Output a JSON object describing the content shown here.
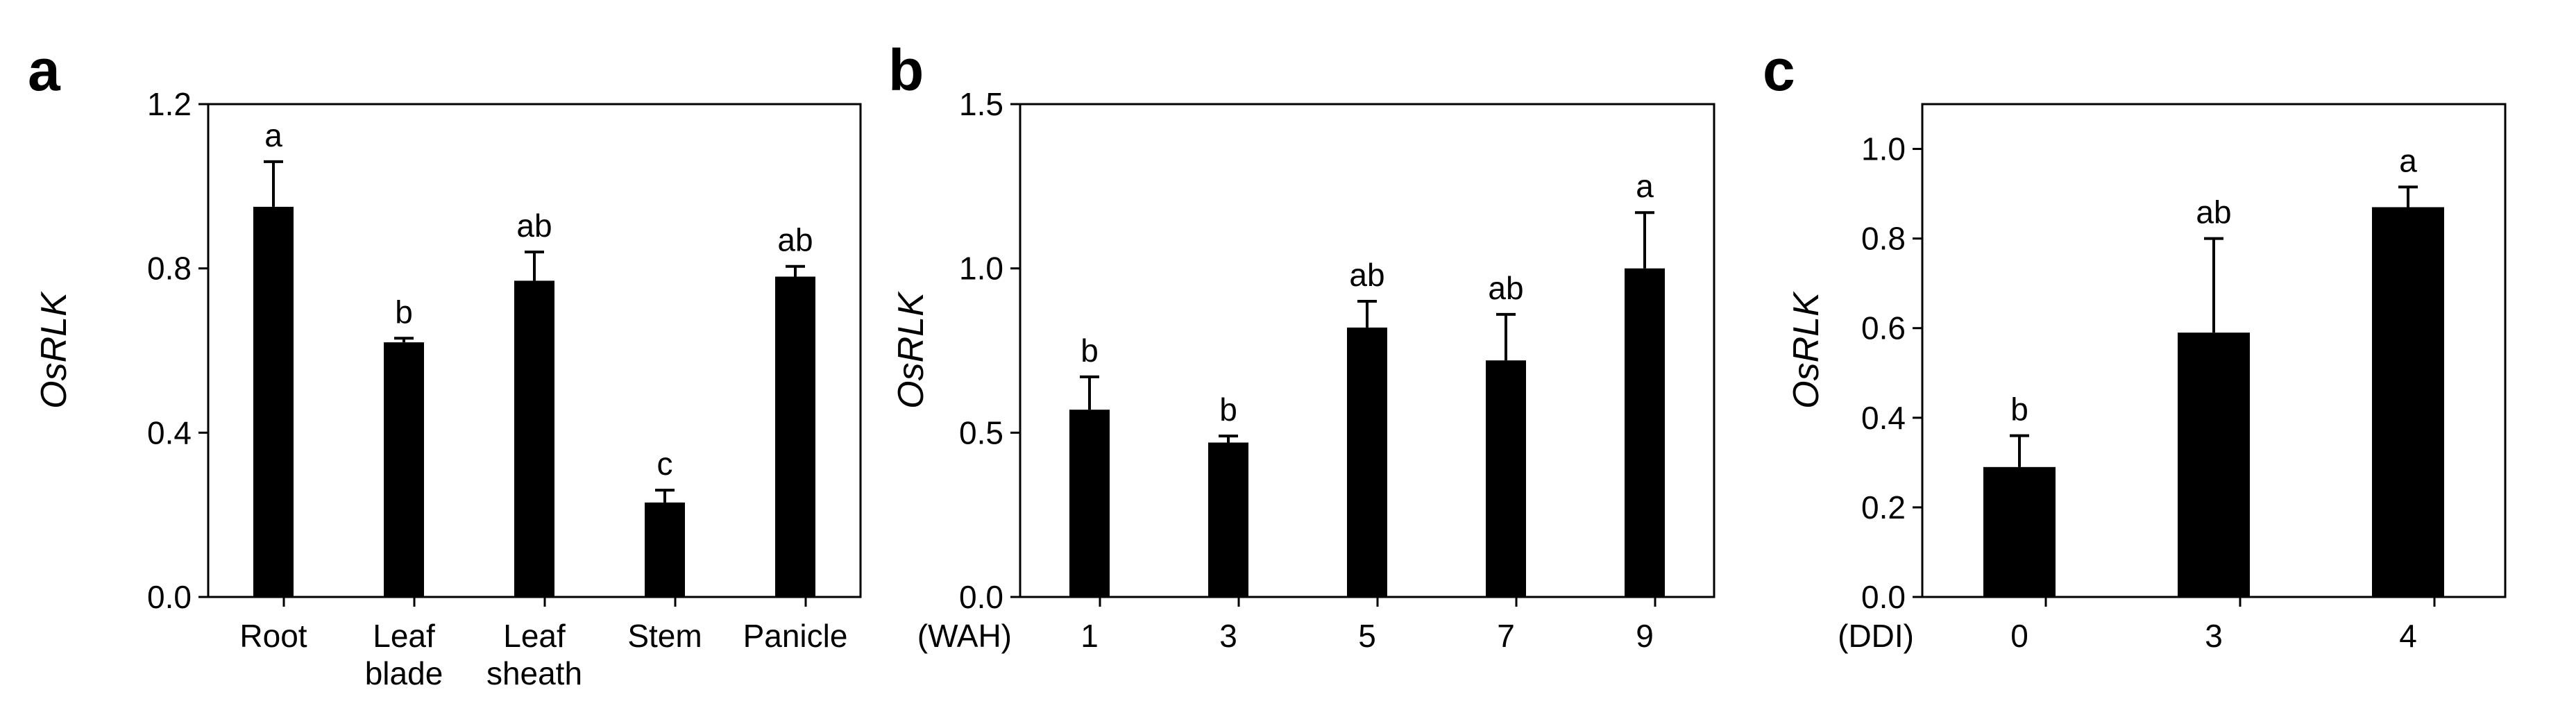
{
  "chart_data": [
    {
      "type": "bar",
      "panel": "a",
      "ylabel": "OsRLK",
      "ylim": [
        0,
        1.2
      ],
      "yticks": [
        "0.0",
        "0.4",
        "0.8",
        "1.2"
      ],
      "xunit": "",
      "categories": [
        [
          "Root"
        ],
        [
          "Leaf",
          "blade"
        ],
        [
          "Leaf",
          "sheath"
        ],
        [
          "Stem"
        ],
        [
          "Panicle"
        ]
      ],
      "values": [
        0.95,
        0.62,
        0.77,
        0.23,
        0.78
      ],
      "errors": [
        0.11,
        0.01,
        0.07,
        0.03,
        0.025
      ],
      "significance": [
        "a",
        "b",
        "ab",
        "c",
        "ab"
      ],
      "color": "#000000"
    },
    {
      "type": "bar",
      "panel": "b",
      "ylabel": "OsRLK",
      "ylim": [
        0,
        1.5
      ],
      "yticks": [
        "0.0",
        "0.5",
        "1.0",
        "1.5"
      ],
      "xunit": "(WAH)",
      "categories": [
        [
          "1"
        ],
        [
          "3"
        ],
        [
          "5"
        ],
        [
          "7"
        ],
        [
          "9"
        ]
      ],
      "values": [
        0.57,
        0.47,
        0.82,
        0.72,
        1.0
      ],
      "errors": [
        0.1,
        0.02,
        0.08,
        0.14,
        0.17
      ],
      "significance": [
        "b",
        "b",
        "ab",
        "ab",
        "a"
      ],
      "color": "#000000"
    },
    {
      "type": "bar",
      "panel": "c",
      "ylabel": "OsRLK",
      "ylim": [
        0,
        1.1
      ],
      "yticks": [
        "0.0",
        "0.2",
        "0.4",
        "0.6",
        "0.8",
        "1.0"
      ],
      "xunit": "(DDI)",
      "categories": [
        [
          "0"
        ],
        [
          "3"
        ],
        [
          "4"
        ]
      ],
      "values": [
        0.29,
        0.59,
        0.87
      ],
      "errors": [
        0.07,
        0.21,
        0.045
      ],
      "significance": [
        "b",
        "ab",
        "a"
      ],
      "color": "#000000"
    }
  ]
}
